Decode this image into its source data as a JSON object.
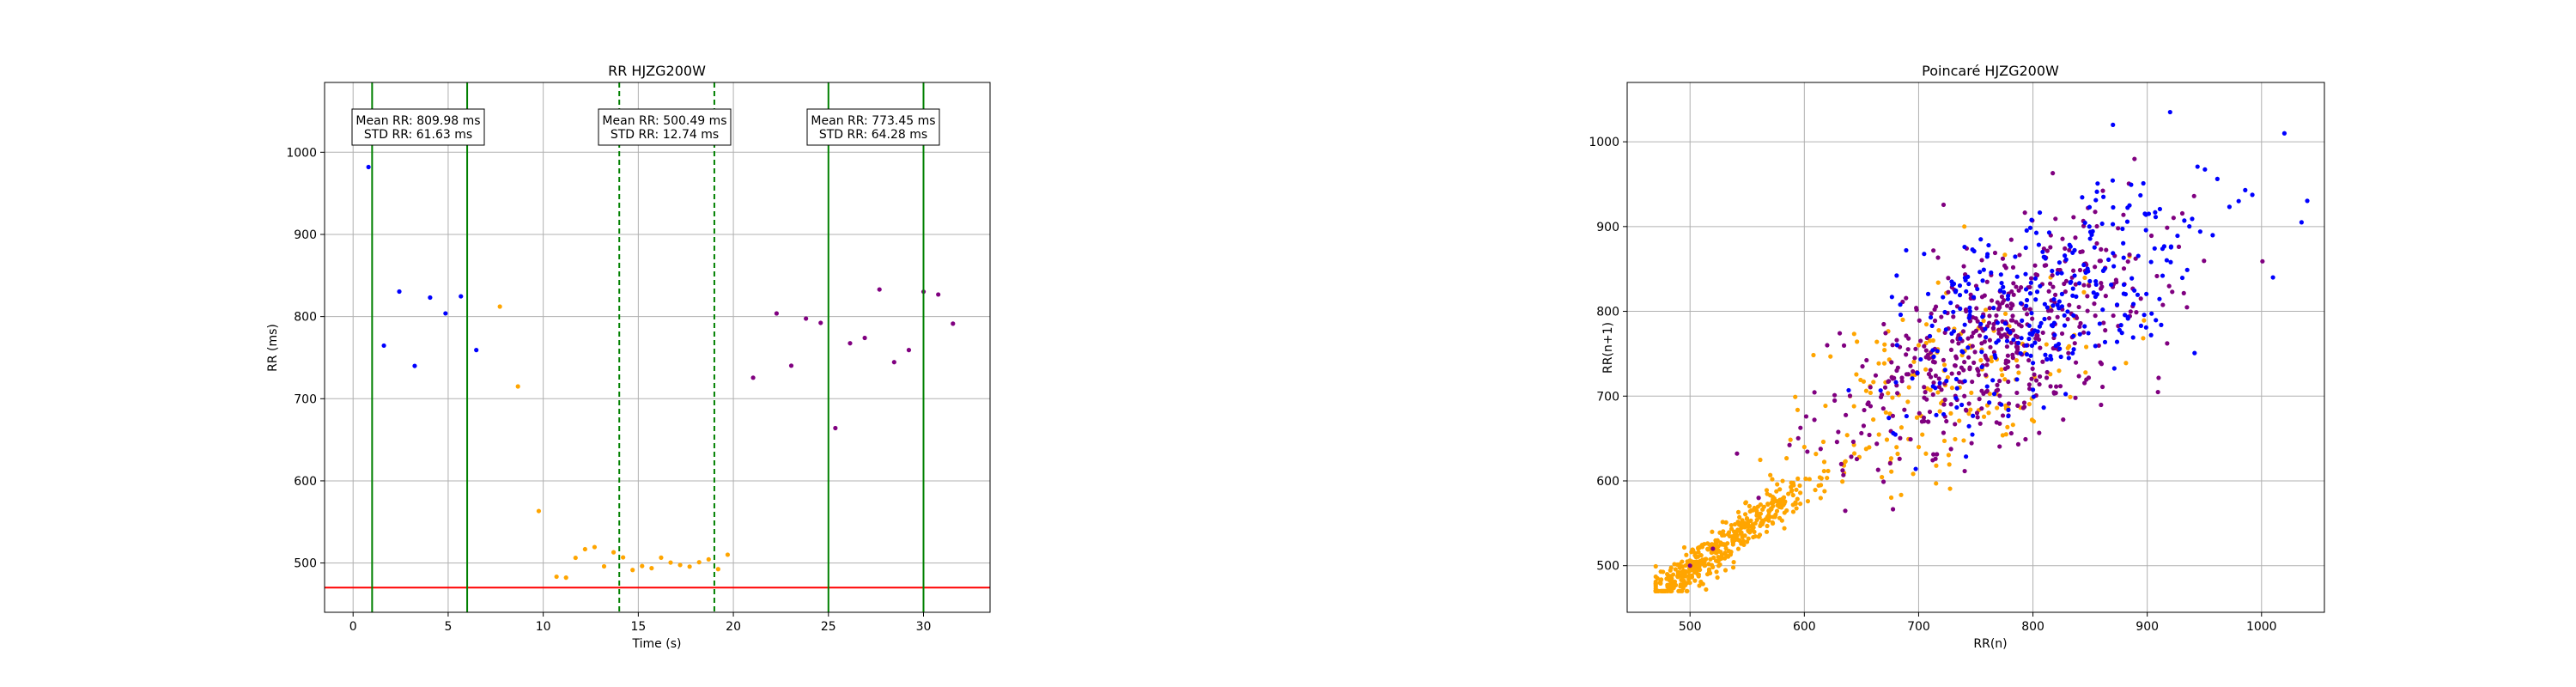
{
  "colors": {
    "baseline": "#0000ff",
    "exercise": "#ffa500",
    "recovery": "#800080",
    "window_line": "#008000",
    "threshold_line": "#ff0000",
    "grid": "#b0b0b0"
  },
  "chart_data": [
    {
      "type": "scatter",
      "title": "RR HJZG200W",
      "xlabel": "Time (s)",
      "ylabel": "RR (ms)",
      "xlim": [
        -1.5,
        33.5
      ],
      "ylim": [
        440,
        1085
      ],
      "xticks": [
        0,
        5,
        10,
        15,
        20,
        25,
        30
      ],
      "yticks": [
        500,
        600,
        700,
        800,
        900,
        1000
      ],
      "grid": true,
      "threshold_line": {
        "y": 470
      },
      "window_lines": [
        {
          "x": 1,
          "style": "solid"
        },
        {
          "x": 6,
          "style": "solid"
        },
        {
          "x": 14,
          "style": "dashed"
        },
        {
          "x": 19,
          "style": "dashed"
        },
        {
          "x": 25,
          "style": "solid"
        },
        {
          "x": 30,
          "style": "solid"
        }
      ],
      "annotations": [
        {
          "x": 3.5,
          "y": 1025,
          "mean": "Mean RR: 809.98 ms",
          "std": "STD RR: 61.63 ms"
        },
        {
          "x": 16.5,
          "y": 1025,
          "mean": "Mean RR: 500.49 ms",
          "std": "STD RR: 12.74 ms"
        },
        {
          "x": 27.5,
          "y": 1025,
          "mean": "Mean RR: 773.45 ms",
          "std": "STD RR: 64.28 ms"
        }
      ],
      "series": [
        {
          "color_key": "baseline",
          "segments": [
            {
              "t0": 0,
              "t1": 7.0,
              "mean": 810,
              "std": 62
            }
          ]
        },
        {
          "color_key": "exercise",
          "segments": [
            {
              "t0": 7.0,
              "t1": 8.0,
              "mean": 720,
              "std": 70
            },
            {
              "t0": 8.0,
              "t1": 9.2,
              "mean": 670,
              "std": 35
            },
            {
              "t0": 9.2,
              "t1": 10.2,
              "mean": 565,
              "std": 30
            },
            {
              "t0": 10.2,
              "t1": 20.0,
              "mean": 500,
              "std": 12.7
            }
          ]
        },
        {
          "color_key": "recovery",
          "segments": [
            {
              "t0": 20.0,
              "t1": 20.4,
              "mean": 495,
              "std": 15
            },
            {
              "t0": 20.4,
              "t1": 21.5,
              "mean": 640,
              "std": 70
            },
            {
              "t0": 21.5,
              "t1": 32.0,
              "mean": 773,
              "std": 64
            }
          ]
        }
      ]
    },
    {
      "type": "scatter",
      "title": "Poincaré HJZG200W",
      "xlabel": "RR(n)",
      "ylabel": "RR(n+1)",
      "xlim": [
        445,
        1055
      ],
      "ylim": [
        445,
        1070
      ],
      "xticks": [
        500,
        600,
        700,
        800,
        900,
        1000
      ],
      "yticks": [
        500,
        600,
        700,
        800,
        900,
        1000
      ],
      "grid": true,
      "series": [
        {
          "color_key": "exercise",
          "center": [
            520,
            515
          ],
          "spread_along": 70,
          "spread_across": 9,
          "extra": [
            [
              470,
              475
            ],
            [
              480,
              490
            ],
            [
              600,
              640
            ],
            [
              640,
              700
            ],
            [
              700,
              760
            ],
            [
              740,
              900
            ]
          ]
        },
        {
          "color_key": "recovery",
          "center": [
            770,
            770
          ],
          "spread_along": 90,
          "spread_across": 45,
          "extra": [
            [
              500,
              500
            ],
            [
              520,
              520
            ],
            [
              560,
              580
            ],
            [
              620,
              760
            ],
            [
              740,
              700
            ]
          ]
        },
        {
          "color_key": "baseline",
          "center": [
            815,
            815
          ],
          "spread_along": 85,
          "spread_across": 45,
          "extra": [
            [
              1020,
              1010
            ],
            [
              1010,
              840
            ],
            [
              1035,
              905
            ],
            [
              920,
              1035
            ],
            [
              870,
              1020
            ],
            [
              980,
              930
            ]
          ]
        }
      ]
    }
  ]
}
